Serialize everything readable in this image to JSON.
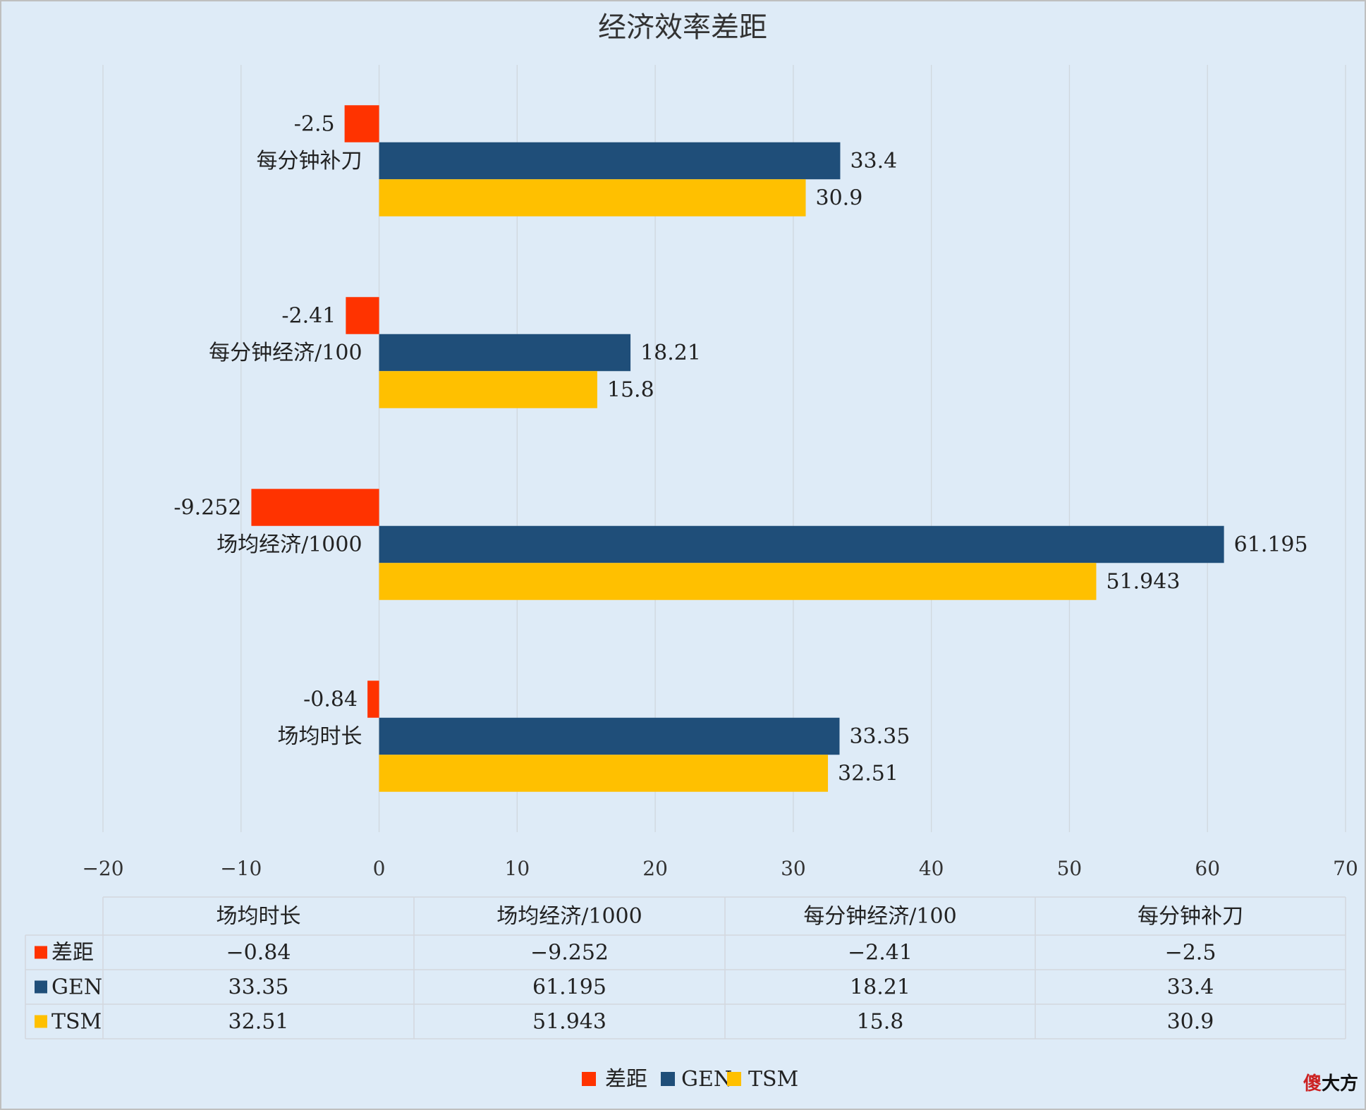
{
  "chart_data": {
    "type": "bar",
    "orientation": "horizontal",
    "title": "经济效率差距",
    "categories": [
      "场均时长",
      "场均经济/1000",
      "每分钟经济/100",
      "每分钟补刀"
    ],
    "series": [
      {
        "name": "差距",
        "color": "#ff3300",
        "values": [
          -0.84,
          -9.252,
          -2.41,
          -2.5
        ],
        "labels": [
          "-0.84",
          "-9.252",
          "-2.41",
          "-2.5"
        ]
      },
      {
        "name": "GEN",
        "color": "#1f4e79",
        "values": [
          33.35,
          61.195,
          18.21,
          33.4
        ],
        "labels": [
          "33.35",
          "61.195",
          "18.21",
          "33.4"
        ]
      },
      {
        "name": "TSM",
        "color": "#ffc000",
        "values": [
          32.51,
          51.943,
          15.8,
          30.9
        ],
        "labels": [
          "32.51",
          "51.943",
          "15.8",
          "30.9"
        ]
      }
    ],
    "xlim": [
      -20,
      70
    ],
    "xticks": [
      -20,
      -10,
      0,
      10,
      20,
      30,
      40,
      50,
      60,
      70
    ],
    "tick_labels": [
      "−20",
      "−10",
      "0",
      "10",
      "20",
      "30",
      "40",
      "50",
      "60",
      "70"
    ],
    "grid": true,
    "legend_position": "bottom",
    "data_table": true
  },
  "table": {
    "headers": [
      "场均时长",
      "场均经济/1000",
      "每分钟经济/100",
      "每分钟补刀"
    ],
    "rows": [
      {
        "name": "差距",
        "cells": [
          "−0.84",
          "−9.252",
          "−2.41",
          "−2.5"
        ]
      },
      {
        "name": "GEN",
        "cells": [
          "33.35",
          "61.195",
          "18.21",
          "33.4"
        ]
      },
      {
        "name": "TSM",
        "cells": [
          "32.51",
          "51.943",
          "15.8",
          "30.9"
        ]
      }
    ]
  },
  "watermark": "傻大方"
}
